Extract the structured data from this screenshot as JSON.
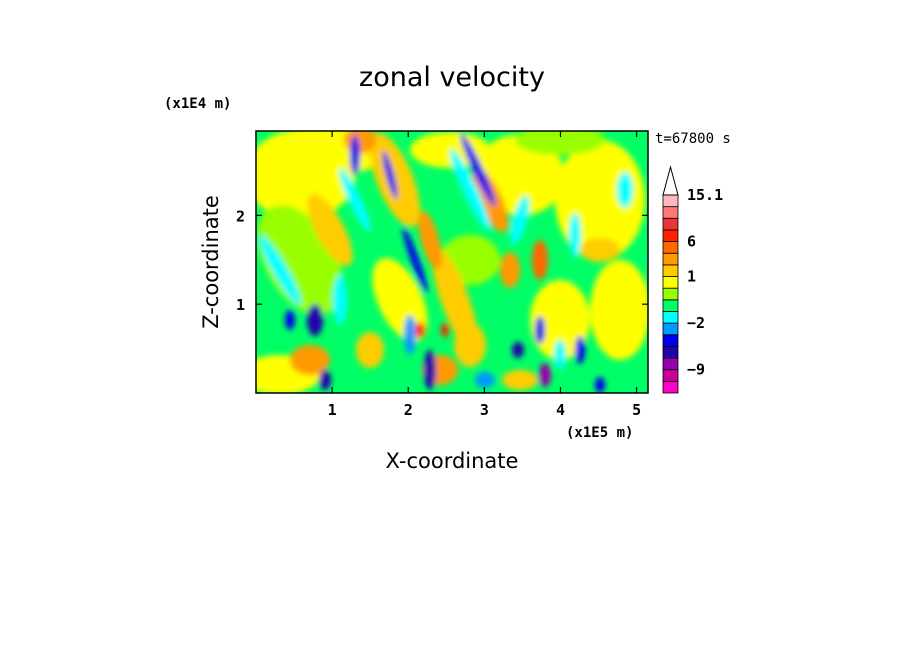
{
  "chart_data": {
    "type": "heatmap",
    "title": "zonal velocity",
    "xlabel": "X-coordinate",
    "ylabel": "Z-coordinate",
    "x_unit": "(x1E5 m)",
    "y_unit": "(x1E4 m)",
    "time_label": "t=67800 s",
    "xlim": [
      0,
      5.15
    ],
    "ylim": [
      0,
      2.95
    ],
    "xticks": [
      1,
      2,
      3,
      4,
      5
    ],
    "yticks": [
      1,
      2
    ],
    "legend": "right",
    "colorbar": {
      "labels": [
        "15.1",
        "6",
        "1",
        "−2",
        "−9"
      ],
      "label_values": [
        15.1,
        6,
        1,
        -2,
        -9
      ],
      "levels": [
        -13,
        -11,
        -9,
        -7,
        -5,
        -3,
        -2,
        -1,
        0,
        0.5,
        1,
        2,
        4,
        6,
        8,
        11,
        13,
        15.1
      ],
      "colors": [
        "#ff00cc",
        "#cc0099",
        "#9900aa",
        "#2200aa",
        "#0000ee",
        "#0099ff",
        "#00ffff",
        "#00ff66",
        "#99ff00",
        "#ffff00",
        "#ffcc00",
        "#ff9900",
        "#ff6600",
        "#ff2200",
        "#ee3333",
        "#ff7777",
        "#ffbbbb"
      ]
    }
  }
}
